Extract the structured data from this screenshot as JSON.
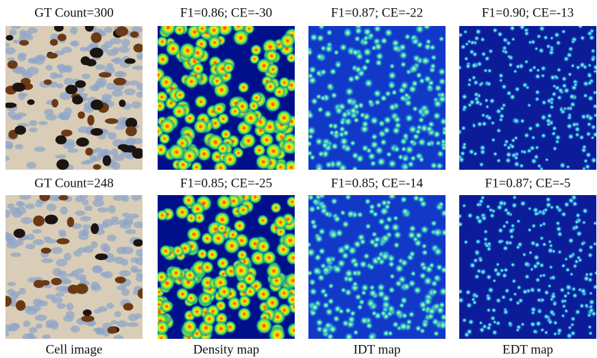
{
  "rows": [
    {
      "titles": [
        "GT Count=300",
        "F1=0.86; CE=-30",
        "F1=0.87; CE=-22",
        "F1=0.90; CE=-13"
      ]
    },
    {
      "titles": [
        "GT Count=248",
        "F1=0.85; CE=-25",
        "F1=0.85; CE=-14",
        "F1=0.87; CE=-5"
      ]
    }
  ],
  "column_labels": [
    "Cell image",
    "Density map",
    "IDT map",
    "EDT map"
  ]
}
